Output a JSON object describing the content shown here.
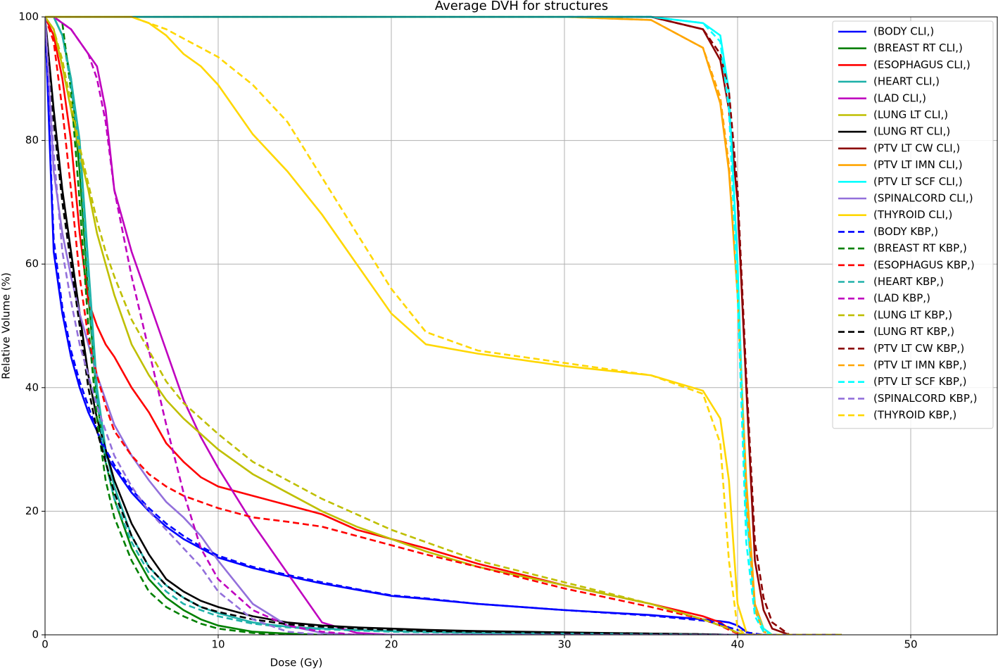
{
  "chart_data": {
    "type": "line",
    "title": "Average DVH for structures",
    "x_label": "Dose (Gy)",
    "y_label": "Relative Volume (%)",
    "xlim": [
      0,
      55
    ],
    "ylim": [
      0,
      100
    ],
    "xticks": [
      0,
      10,
      20,
      30,
      40,
      50
    ],
    "yticks": [
      0,
      20,
      40,
      60,
      80,
      100
    ],
    "grid": true,
    "legend": "upper right",
    "x": [
      0,
      0.5,
      1,
      1.5,
      2,
      2.5,
      3,
      3.5,
      4,
      5,
      6,
      7,
      8,
      9,
      10,
      12,
      14,
      16,
      18,
      20,
      22,
      25,
      30,
      35,
      38,
      39,
      39.5,
      40,
      40.5,
      41,
      41.5,
      42,
      43,
      46
    ],
    "series": [
      {
        "name": "(BODY CLI,)",
        "color": "#0000ff",
        "linestyle": "solid",
        "values": [
          100,
          62,
          52,
          45,
          40,
          36,
          33,
          29,
          27,
          23,
          20,
          17.5,
          15.5,
          14,
          12.5,
          10.8,
          9.5,
          8.3,
          7.3,
          6.3,
          5.8,
          5,
          4,
          3.2,
          2.5,
          2.2,
          2,
          1.5,
          0.5,
          0,
          0,
          0,
          0,
          0
        ]
      },
      {
        "name": "(BREAST RT CLI,)",
        "color": "#008000",
        "linestyle": "solid",
        "values": [
          100,
          100,
          97,
          90,
          75,
          55,
          38,
          28,
          22,
          14,
          9,
          6,
          4,
          2.5,
          1.5,
          0.5,
          0.2,
          0,
          0,
          0,
          0,
          0,
          0,
          0,
          0,
          0,
          0,
          0,
          0,
          0,
          0,
          0,
          0,
          0
        ]
      },
      {
        "name": "(ESOPHAGUS CLI,)",
        "color": "#ff0000",
        "linestyle": "solid",
        "values": [
          100,
          97,
          90,
          80,
          65,
          54,
          50,
          47,
          45,
          40,
          36,
          31,
          28,
          25.5,
          24,
          22.5,
          21,
          19.5,
          17,
          15.5,
          14,
          11.5,
          8,
          5,
          3,
          2,
          1,
          0.3,
          0,
          0,
          0,
          0,
          0,
          0
        ]
      },
      {
        "name": "(HEART CLI,)",
        "color": "#20b2aa",
        "linestyle": "solid",
        "values": [
          100,
          100,
          97,
          90,
          80,
          60,
          40,
          30,
          24,
          16,
          11,
          8,
          6,
          4.5,
          3.5,
          2,
          1.3,
          1,
          0.8,
          0.6,
          0.5,
          0.3,
          0.2,
          0.1,
          0.05,
          0,
          0,
          0,
          0,
          0,
          0,
          0,
          0,
          0
        ]
      },
      {
        "name": "(LAD CLI,)",
        "color": "#bf00bf",
        "linestyle": "solid",
        "values": [
          100,
          100,
          99,
          98,
          96,
          94,
          92,
          85,
          72,
          62,
          54,
          46,
          38,
          32,
          27,
          18,
          10,
          2,
          0.3,
          0,
          0,
          0,
          0,
          0,
          0,
          0,
          0,
          0,
          0,
          0,
          0,
          0,
          0,
          0
        ]
      },
      {
        "name": "(LUNG LT CLI,)",
        "color": "#bfbf00",
        "linestyle": "solid",
        "values": [
          100,
          98,
          92,
          85,
          78,
          72,
          65,
          60,
          55,
          47,
          42,
          38,
          35,
          32.5,
          30,
          26,
          23,
          20,
          17.5,
          15.5,
          13.5,
          11,
          8,
          5,
          2.5,
          1.5,
          1,
          0.3,
          0,
          0,
          0,
          0,
          0,
          0
        ]
      },
      {
        "name": "(LUNG RT CLI,)",
        "color": "#000000",
        "linestyle": "solid",
        "values": [
          100,
          85,
          72,
          62,
          52,
          42,
          35,
          30,
          25,
          18,
          13,
          9,
          7,
          5.5,
          4.5,
          3,
          2,
          1.5,
          1.2,
          1,
          0.8,
          0.6,
          0.4,
          0.2,
          0.1,
          0.05,
          0,
          0,
          0,
          0,
          0,
          0,
          0,
          0
        ]
      },
      {
        "name": "(PTV LT CW CLI,)",
        "color": "#8b0000",
        "linestyle": "solid",
        "values": [
          100,
          100,
          100,
          100,
          100,
          100,
          100,
          100,
          100,
          100,
          100,
          100,
          100,
          100,
          100,
          100,
          100,
          100,
          100,
          100,
          100,
          100,
          100,
          100,
          98,
          93,
          85,
          70,
          40,
          12,
          4,
          1,
          0,
          0
        ]
      },
      {
        "name": "(PTV LT IMN CLI,)",
        "color": "#ffa500",
        "linestyle": "solid",
        "values": [
          100,
          100,
          100,
          100,
          100,
          100,
          100,
          100,
          100,
          100,
          100,
          100,
          100,
          100,
          100,
          100,
          100,
          100,
          100,
          100,
          100,
          100,
          100,
          99.5,
          95,
          86,
          75,
          55,
          25,
          5,
          1,
          0,
          0,
          0
        ]
      },
      {
        "name": "(PTV LT SCF CLI,)",
        "color": "#00ffff",
        "linestyle": "solid",
        "values": [
          100,
          100,
          100,
          100,
          100,
          100,
          100,
          100,
          100,
          100,
          100,
          100,
          100,
          100,
          100,
          100,
          100,
          100,
          100,
          100,
          100,
          100,
          100,
          100,
          99,
          97,
          88,
          60,
          20,
          4,
          1,
          0,
          0,
          0
        ]
      },
      {
        "name": "(SPINALCORD CLI,)",
        "color": "#9370db",
        "linestyle": "solid",
        "values": [
          100,
          75,
          65,
          58,
          52,
          47,
          42,
          38,
          34,
          29,
          25,
          21.5,
          19,
          16,
          12,
          5,
          1.5,
          0.3,
          0,
          0,
          0,
          0,
          0,
          0,
          0,
          0,
          0,
          0,
          0,
          0,
          0,
          0,
          0,
          0
        ]
      },
      {
        "name": "(THYROID CLI,)",
        "color": "#ffd700",
        "linestyle": "solid",
        "values": [
          100,
          100,
          100,
          100,
          100,
          100,
          100,
          100,
          100,
          100,
          99,
          97,
          94,
          92,
          89,
          81,
          75,
          68,
          60,
          52,
          47,
          45.5,
          43.5,
          42,
          39.5,
          35,
          25,
          5,
          0.5,
          0,
          0,
          0,
          0,
          0
        ]
      },
      {
        "name": "(BODY KBP,)",
        "color": "#0000ff",
        "linestyle": "dashed",
        "values": [
          100,
          64,
          53,
          46,
          41,
          37,
          33,
          30,
          27.5,
          23.5,
          20.5,
          18,
          16,
          14.3,
          12.8,
          11,
          9.7,
          8.5,
          7.4,
          6.4,
          5.9,
          5,
          4,
          3.1,
          2.3,
          1.8,
          1.2,
          0.8,
          0.4,
          0.2,
          0,
          0,
          0,
          0
        ]
      },
      {
        "name": "(BREAST RT KBP,)",
        "color": "#008000",
        "linestyle": "dashed",
        "values": [
          100,
          100,
          99,
          88,
          70,
          50,
          35,
          25,
          19,
          12,
          7,
          4.5,
          3,
          1.8,
          1,
          0.3,
          0,
          0,
          0,
          0,
          0,
          0,
          0,
          0,
          0,
          0,
          0,
          0,
          0,
          0,
          0,
          0,
          0,
          0
        ]
      },
      {
        "name": "(ESOPHAGUS KBP,)",
        "color": "#ff0000",
        "linestyle": "dashed",
        "values": [
          100,
          96,
          85,
          72,
          58,
          48,
          42,
          37,
          33,
          29,
          26,
          24,
          22.5,
          21.5,
          20.5,
          19,
          18.3,
          17.5,
          16,
          14.5,
          13,
          11,
          7.5,
          4.5,
          2.5,
          1.5,
          0.8,
          0.2,
          0,
          0,
          0,
          0,
          0,
          0
        ]
      },
      {
        "name": "(HEART KBP,)",
        "color": "#20b2aa",
        "linestyle": "dashed",
        "values": [
          100,
          100,
          97,
          89,
          78,
          57,
          38,
          28,
          22,
          15,
          10,
          7,
          5,
          4,
          3,
          1.8,
          1.2,
          0.9,
          0.7,
          0.5,
          0.4,
          0.3,
          0.2,
          0.1,
          0,
          0,
          0,
          0,
          0,
          0,
          0,
          0,
          0,
          0
        ]
      },
      {
        "name": "(LAD KBP,)",
        "color": "#bf00bf",
        "linestyle": "dashed",
        "values": [
          100,
          100,
          99,
          98,
          96,
          94,
          90,
          83,
          72,
          58,
          46,
          34,
          23,
          14,
          9,
          4,
          1.5,
          0.5,
          0,
          0,
          0,
          0,
          0,
          0,
          0,
          0,
          0,
          0,
          0,
          0,
          0,
          0,
          0,
          0
        ]
      },
      {
        "name": "(LUNG LT KBP,)",
        "color": "#bfbf00",
        "linestyle": "dashed",
        "values": [
          100,
          98,
          93,
          86,
          79,
          73,
          67,
          62,
          58,
          51,
          46,
          41,
          37.5,
          35,
          32.5,
          28,
          25,
          22,
          19.5,
          17,
          15,
          12,
          8.5,
          5,
          2.5,
          1.5,
          1,
          0.3,
          0,
          0,
          0,
          0,
          0,
          0
        ]
      },
      {
        "name": "(LUNG RT KBP,)",
        "color": "#000000",
        "linestyle": "dashed",
        "values": [
          100,
          83,
          70,
          60,
          50,
          40,
          33,
          28,
          23,
          16,
          11,
          8,
          6,
          4.5,
          3.7,
          2.5,
          1.7,
          1.3,
          1,
          0.8,
          0.6,
          0.5,
          0.3,
          0.2,
          0.1,
          0,
          0,
          0,
          0,
          0,
          0,
          0,
          0,
          0
        ]
      },
      {
        "name": "(PTV LT CW KBP,)",
        "color": "#8b0000",
        "linestyle": "dashed",
        "values": [
          100,
          100,
          100,
          100,
          100,
          100,
          100,
          100,
          100,
          100,
          100,
          100,
          100,
          100,
          100,
          100,
          100,
          100,
          100,
          100,
          100,
          100,
          100,
          100,
          98,
          94,
          88,
          72,
          42,
          15,
          6,
          2,
          0,
          0
        ]
      },
      {
        "name": "(PTV LT IMN KBP,)",
        "color": "#ffa500",
        "linestyle": "dashed",
        "values": [
          100,
          100,
          100,
          100,
          100,
          100,
          100,
          100,
          100,
          100,
          100,
          100,
          100,
          100,
          100,
          100,
          100,
          100,
          100,
          100,
          100,
          100,
          100,
          99.5,
          95,
          87,
          76,
          55,
          22,
          4,
          0.5,
          0,
          0,
          0
        ]
      },
      {
        "name": "(PTV LT SCF KBP,)",
        "color": "#00ffff",
        "linestyle": "dashed",
        "values": [
          100,
          100,
          100,
          100,
          100,
          100,
          100,
          100,
          100,
          100,
          100,
          100,
          100,
          100,
          100,
          100,
          100,
          100,
          100,
          100,
          100,
          100,
          100,
          100,
          99,
          96,
          85,
          55,
          15,
          3,
          0.5,
          0,
          0,
          0
        ]
      },
      {
        "name": "(SPINALCORD KBP,)",
        "color": "#9370db",
        "linestyle": "dashed",
        "values": [
          100,
          78,
          62,
          54,
          47,
          42,
          37,
          33,
          29,
          24,
          20,
          17,
          14,
          11,
          7,
          2.5,
          0.5,
          0,
          0,
          0,
          0,
          0,
          0,
          0,
          0,
          0,
          0,
          0,
          0,
          0,
          0,
          0,
          0,
          0
        ]
      },
      {
        "name": "(THYROID KBP,)",
        "color": "#ffd700",
        "linestyle": "dashed",
        "values": [
          100,
          100,
          100,
          100,
          100,
          100,
          100,
          100,
          100,
          100,
          99,
          98,
          96.5,
          95,
          93.5,
          89,
          83,
          74,
          65,
          56,
          49,
          46,
          44,
          42,
          39,
          31,
          12,
          1,
          0,
          0,
          0,
          0,
          0,
          0
        ]
      }
    ]
  }
}
